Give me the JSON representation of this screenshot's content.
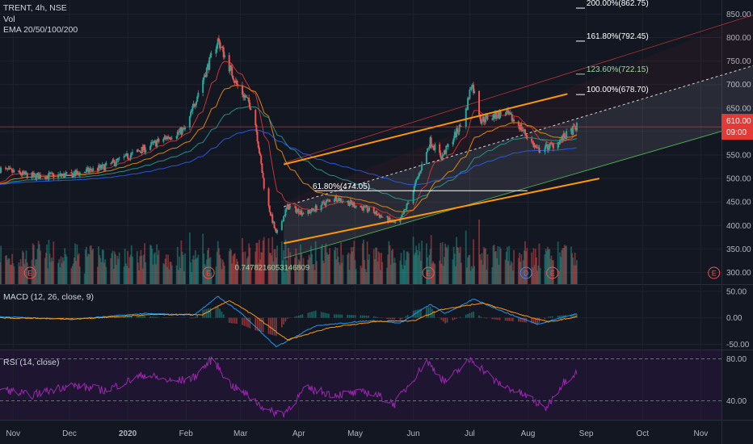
{
  "symbol_line": "TRENT, 4h, NSE",
  "vol_label": "Vol",
  "ema_label": "EMA 20/50/100/200",
  "macd_label": "MACD (12, 26, close, 9)",
  "rsi_label": "RSI (14, close)",
  "colors": {
    "background": "#131722",
    "up": "#26a69a",
    "down": "#ef5350",
    "channel": "#ff9800",
    "fib_line": "#ffffff",
    "green_line": "#4caf50",
    "red_line": "#e53935",
    "rsi": "#9c27b0",
    "macd": "#2196f3",
    "signal": "#ff9800",
    "last_price_bg": "#e53935"
  },
  "chart_data": [
    {
      "type": "candlestick",
      "title": "TRENT, 4h, NSE",
      "ylim": [
        275,
        880
      ],
      "y_ticks": [
        300,
        350,
        400,
        450,
        500,
        550,
        600,
        650,
        700,
        750,
        800,
        850
      ],
      "y_tick_labels": [
        "300.00",
        "350.00",
        "400.00",
        "450.00",
        "500.00",
        "550.00",
        "600.00",
        "650.00",
        "700.00",
        "750.00",
        "800.00",
        "850.00"
      ],
      "x_tick_labels": [
        "Nov",
        "Dec",
        "2020",
        "Feb",
        "Mar",
        "Apr",
        "May",
        "Jun",
        "Jul",
        "Aug",
        "Sep",
        "Oct",
        "Nov"
      ],
      "price_keypoints": [
        [
          "2019-10-25",
          520
        ],
        [
          "2019-11-10",
          505
        ],
        [
          "2019-12-01",
          507
        ],
        [
          "2019-12-20",
          525
        ],
        [
          "2020-01-08",
          560
        ],
        [
          "2020-01-22",
          588
        ],
        [
          "2020-02-01",
          605
        ],
        [
          "2020-02-08",
          690
        ],
        [
          "2020-02-18",
          795
        ],
        [
          "2020-02-28",
          700
        ],
        [
          "2020-03-08",
          645
        ],
        [
          "2020-03-14",
          470
        ],
        [
          "2020-03-20",
          380
        ],
        [
          "2020-03-26",
          440
        ],
        [
          "2020-04-05",
          425
        ],
        [
          "2020-04-20",
          460
        ],
        [
          "2020-05-10",
          430
        ],
        [
          "2020-05-24",
          400
        ],
        [
          "2020-06-01",
          475
        ],
        [
          "2020-06-10",
          580
        ],
        [
          "2020-06-16",
          545
        ],
        [
          "2020-06-28",
          625
        ],
        [
          "2020-07-02",
          705
        ],
        [
          "2020-07-07",
          625
        ],
        [
          "2020-07-20",
          640
        ],
        [
          "2020-07-28",
          610
        ],
        [
          "2020-08-06",
          560
        ],
        [
          "2020-08-15",
          572
        ],
        [
          "2020-08-24",
          600
        ],
        [
          "2020-08-27",
          610
        ]
      ],
      "last_price": 610.0,
      "last_price_label": "610.00",
      "countdown_label": "09:00",
      "fib_levels": [
        {
          "label": "61.80%(474.05)",
          "value": 474.05
        },
        {
          "label": "100.00%(678.70)",
          "value": 678.7
        },
        {
          "label": "123.60%(722.15)",
          "value": 722.15
        },
        {
          "label": "161.80%(792.45)",
          "value": 792.45
        },
        {
          "label": "200.00%(862.75)",
          "value": 862.75
        }
      ],
      "fib_note": "0.7478216053146809",
      "earnings_markers": [
        "E",
        "E",
        "E",
        "D",
        "E",
        "E"
      ]
    },
    {
      "type": "line",
      "title": "MACD (12, 26, close, 9)",
      "ylim": [
        -60,
        62
      ],
      "y_ticks": [
        50,
        0,
        -50
      ],
      "y_tick_labels": [
        "50.00",
        "0.00",
        "-50.00"
      ],
      "series": [
        {
          "name": "MACD",
          "keypoints": [
            [
              "2019-10-25",
              2
            ],
            [
              "2019-12-01",
              -3
            ],
            [
              "2020-01-10",
              8
            ],
            [
              "2020-02-05",
              5
            ],
            [
              "2020-02-18",
              40
            ],
            [
              "2020-03-01",
              10
            ],
            [
              "2020-03-20",
              -55
            ],
            [
              "2020-04-10",
              -15
            ],
            [
              "2020-05-10",
              -5
            ],
            [
              "2020-05-25",
              -10
            ],
            [
              "2020-06-10",
              25
            ],
            [
              "2020-06-18",
              8
            ],
            [
              "2020-07-03",
              35
            ],
            [
              "2020-07-20",
              10
            ],
            [
              "2020-08-06",
              -12
            ],
            [
              "2020-08-27",
              8
            ]
          ]
        },
        {
          "name": "Signal",
          "keypoints": [
            [
              "2019-10-25",
              0
            ],
            [
              "2019-12-05",
              -2
            ],
            [
              "2020-01-15",
              6
            ],
            [
              "2020-02-10",
              6
            ],
            [
              "2020-02-24",
              33
            ],
            [
              "2020-03-08",
              5
            ],
            [
              "2020-03-26",
              -42
            ],
            [
              "2020-04-18",
              -18
            ],
            [
              "2020-05-15",
              -6
            ],
            [
              "2020-06-01",
              -6
            ],
            [
              "2020-06-15",
              15
            ],
            [
              "2020-07-08",
              28
            ],
            [
              "2020-07-26",
              8
            ],
            [
              "2020-08-12",
              -8
            ],
            [
              "2020-08-27",
              2
            ]
          ]
        }
      ]
    },
    {
      "type": "line",
      "title": "RSI (14, close)",
      "ylim": [
        22,
        88
      ],
      "y_ticks": [
        80,
        40
      ],
      "y_tick_labels": [
        "80.00",
        "40.00"
      ],
      "series": [
        {
          "name": "RSI",
          "keypoints": [
            [
              "2019-10-25",
              52
            ],
            [
              "2019-11-10",
              45
            ],
            [
              "2019-12-01",
              55
            ],
            [
              "2019-12-20",
              50
            ],
            [
              "2020-01-10",
              65
            ],
            [
              "2020-01-25",
              58
            ],
            [
              "2020-02-05",
              62
            ],
            [
              "2020-02-15",
              80
            ],
            [
              "2020-02-25",
              55
            ],
            [
              "2020-03-05",
              45
            ],
            [
              "2020-03-16",
              30
            ],
            [
              "2020-03-24",
              28
            ],
            [
              "2020-04-05",
              52
            ],
            [
              "2020-04-20",
              46
            ],
            [
              "2020-05-10",
              48
            ],
            [
              "2020-05-22",
              37
            ],
            [
              "2020-06-08",
              78
            ],
            [
              "2020-06-18",
              58
            ],
            [
              "2020-07-02",
              80
            ],
            [
              "2020-07-15",
              58
            ],
            [
              "2020-08-03",
              42
            ],
            [
              "2020-08-10",
              32
            ],
            [
              "2020-08-20",
              58
            ],
            [
              "2020-08-27",
              68
            ]
          ]
        }
      ]
    }
  ]
}
